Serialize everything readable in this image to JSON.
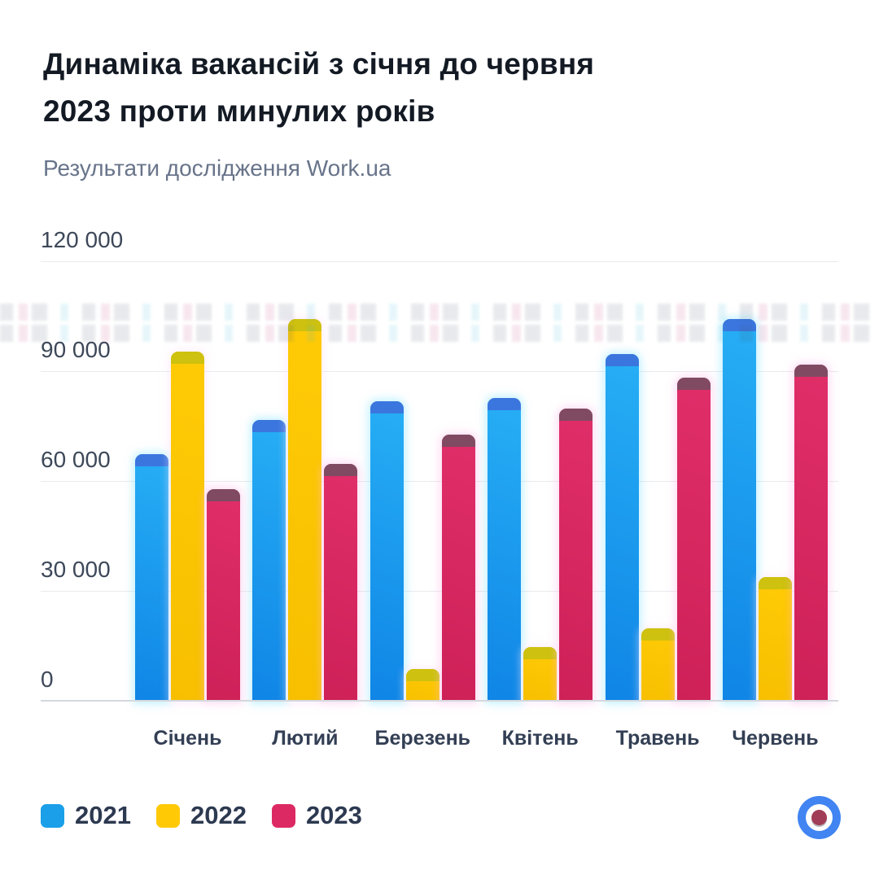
{
  "title": {
    "line1": "Динаміка вакансій з січня до червня",
    "line2": "2023 проти минулих років"
  },
  "subtitle": "Результати дослідження Work.ua",
  "chart_data": {
    "type": "bar",
    "title": "Динаміка вакансій з січня до червня 2023 проти минулих років",
    "subtitle": "Результати дослідження Work.ua",
    "categories": [
      "Січень",
      "Лютий",
      "Березень",
      "Квітень",
      "Травень",
      "Червень"
    ],
    "series": [
      {
        "name": "2021",
        "color": "#0f85e6",
        "color_light": "#27aff5",
        "cap_color": "#3f6cd9",
        "halo": "rgba(150,232,255,0.55)",
        "values": [
          67500,
          77000,
          82000,
          83000,
          95000,
          104500
        ]
      },
      {
        "name": "2022",
        "color": "#f7bf00",
        "color_light": "#ffcb06",
        "cap_color": "#c6c012",
        "halo": "rgba(255,228,250,0.55)",
        "values": [
          95500,
          104500,
          9000,
          15000,
          20000,
          34000
        ]
      },
      {
        "name": "2023",
        "color": "#ce2158",
        "color_light": "#e02e69",
        "cap_color": "#6f5061",
        "halo": "rgba(255,190,235,0.5)",
        "values": [
          58000,
          65000,
          73000,
          80000,
          88500,
          92000
        ]
      }
    ],
    "ylim": [
      0,
      120000
    ],
    "y_ticks": [
      {
        "value": 0,
        "label": "0"
      },
      {
        "value": 30000,
        "label": "30 000"
      },
      {
        "value": 60000,
        "label": "60 000"
      },
      {
        "value": 90000,
        "label": "90 000"
      },
      {
        "value": 120000,
        "label": "120 000"
      }
    ],
    "xlabel": "",
    "ylabel": "",
    "grid": true,
    "legend_position": "bottom-left"
  },
  "legend": [
    {
      "label": "2021",
      "color": "#1a9fe8"
    },
    {
      "label": "2022",
      "color": "#ffc905"
    },
    {
      "label": "2023",
      "color": "#dc2963"
    }
  ],
  "logo": {
    "name": "Work.ua",
    "ring_color": "#4184f2",
    "center_color": "#a13d56"
  }
}
